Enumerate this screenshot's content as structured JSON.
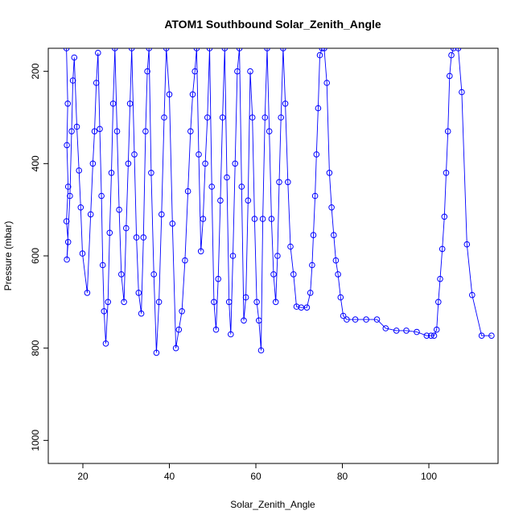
{
  "chart_data": {
    "type": "line",
    "title": "ATOM1 Southbound Solar_Zenith_Angle",
    "xlabel": "Solar_Zenith_Angle",
    "ylabel": "Pressure (mbar)",
    "xlim": [
      12,
      116
    ],
    "ylim": [
      1050,
      150
    ],
    "y_reversed": true,
    "grid": false,
    "marker": "open-circle",
    "color": "#0000ff",
    "xticks": [
      20,
      40,
      60,
      80,
      100
    ],
    "yticks": [
      200,
      400,
      600,
      800,
      1000
    ],
    "series": [
      {
        "values": [
          {
            "x": 16.2,
            "y": 150
          },
          {
            "x": 16.5,
            "y": 270
          },
          {
            "x": 16.3,
            "y": 360
          },
          {
            "x": 16.6,
            "y": 450
          },
          {
            "x": 16.2,
            "y": 525
          },
          {
            "x": 16.6,
            "y": 570
          },
          {
            "x": 16.3,
            "y": 608
          },
          {
            "x": 17.0,
            "y": 470
          },
          {
            "x": 17.4,
            "y": 330
          },
          {
            "x": 17.7,
            "y": 220
          },
          {
            "x": 18.0,
            "y": 170
          },
          {
            "x": 18.6,
            "y": 320
          },
          {
            "x": 19.1,
            "y": 415
          },
          {
            "x": 19.5,
            "y": 495
          },
          {
            "x": 19.9,
            "y": 595
          },
          {
            "x": 21.0,
            "y": 680
          },
          {
            "x": 21.8,
            "y": 510
          },
          {
            "x": 22.3,
            "y": 400
          },
          {
            "x": 22.7,
            "y": 330
          },
          {
            "x": 23.1,
            "y": 225
          },
          {
            "x": 23.5,
            "y": 160
          },
          {
            "x": 23.9,
            "y": 325
          },
          {
            "x": 24.3,
            "y": 470
          },
          {
            "x": 24.6,
            "y": 620
          },
          {
            "x": 24.9,
            "y": 720
          },
          {
            "x": 25.3,
            "y": 790
          },
          {
            "x": 25.8,
            "y": 700
          },
          {
            "x": 26.2,
            "y": 550
          },
          {
            "x": 26.6,
            "y": 420
          },
          {
            "x": 27.0,
            "y": 270
          },
          {
            "x": 27.4,
            "y": 150
          },
          {
            "x": 27.9,
            "y": 330
          },
          {
            "x": 28.4,
            "y": 500
          },
          {
            "x": 28.9,
            "y": 640
          },
          {
            "x": 29.5,
            "y": 700
          },
          {
            "x": 30.0,
            "y": 540
          },
          {
            "x": 30.5,
            "y": 400
          },
          {
            "x": 30.9,
            "y": 270
          },
          {
            "x": 31.3,
            "y": 150
          },
          {
            "x": 31.9,
            "y": 380
          },
          {
            "x": 32.4,
            "y": 560
          },
          {
            "x": 32.9,
            "y": 680
          },
          {
            "x": 33.5,
            "y": 725
          },
          {
            "x": 34.0,
            "y": 560
          },
          {
            "x": 34.5,
            "y": 330
          },
          {
            "x": 34.9,
            "y": 200
          },
          {
            "x": 35.3,
            "y": 150
          },
          {
            "x": 35.8,
            "y": 420
          },
          {
            "x": 36.4,
            "y": 640
          },
          {
            "x": 37.0,
            "y": 810
          },
          {
            "x": 37.6,
            "y": 700
          },
          {
            "x": 38.2,
            "y": 510
          },
          {
            "x": 38.8,
            "y": 300
          },
          {
            "x": 39.3,
            "y": 150
          },
          {
            "x": 40.0,
            "y": 250
          },
          {
            "x": 40.7,
            "y": 530
          },
          {
            "x": 41.5,
            "y": 800
          },
          {
            "x": 42.2,
            "y": 760
          },
          {
            "x": 42.9,
            "y": 720
          },
          {
            "x": 43.6,
            "y": 610
          },
          {
            "x": 44.3,
            "y": 460
          },
          {
            "x": 44.9,
            "y": 330
          },
          {
            "x": 45.4,
            "y": 250
          },
          {
            "x": 45.9,
            "y": 200
          },
          {
            "x": 46.3,
            "y": 150
          },
          {
            "x": 46.8,
            "y": 380
          },
          {
            "x": 47.3,
            "y": 590
          },
          {
            "x": 47.8,
            "y": 520
          },
          {
            "x": 48.3,
            "y": 400
          },
          {
            "x": 48.8,
            "y": 300
          },
          {
            "x": 49.3,
            "y": 150
          },
          {
            "x": 49.8,
            "y": 450
          },
          {
            "x": 50.3,
            "y": 700
          },
          {
            "x": 50.8,
            "y": 760
          },
          {
            "x": 51.3,
            "y": 650
          },
          {
            "x": 51.8,
            "y": 480
          },
          {
            "x": 52.3,
            "y": 300
          },
          {
            "x": 52.8,
            "y": 150
          },
          {
            "x": 53.3,
            "y": 430
          },
          {
            "x": 53.8,
            "y": 700
          },
          {
            "x": 54.2,
            "y": 770
          },
          {
            "x": 54.7,
            "y": 600
          },
          {
            "x": 55.2,
            "y": 400
          },
          {
            "x": 55.7,
            "y": 200
          },
          {
            "x": 56.2,
            "y": 150
          },
          {
            "x": 56.7,
            "y": 450
          },
          {
            "x": 57.2,
            "y": 740
          },
          {
            "x": 57.7,
            "y": 690
          },
          {
            "x": 58.2,
            "y": 480
          },
          {
            "x": 58.7,
            "y": 200
          },
          {
            "x": 59.2,
            "y": 300
          },
          {
            "x": 59.7,
            "y": 520
          },
          {
            "x": 60.2,
            "y": 700
          },
          {
            "x": 60.7,
            "y": 740
          },
          {
            "x": 61.2,
            "y": 805
          },
          {
            "x": 61.6,
            "y": 520
          },
          {
            "x": 62.1,
            "y": 300
          },
          {
            "x": 62.6,
            "y": 150
          },
          {
            "x": 63.1,
            "y": 330
          },
          {
            "x": 63.6,
            "y": 520
          },
          {
            "x": 64.1,
            "y": 640
          },
          {
            "x": 64.6,
            "y": 700
          },
          {
            "x": 65.0,
            "y": 600
          },
          {
            "x": 65.4,
            "y": 440
          },
          {
            "x": 65.8,
            "y": 300
          },
          {
            "x": 66.3,
            "y": 150
          },
          {
            "x": 66.8,
            "y": 270
          },
          {
            "x": 67.4,
            "y": 440
          },
          {
            "x": 68.0,
            "y": 580
          },
          {
            "x": 68.7,
            "y": 640
          },
          {
            "x": 69.4,
            "y": 710
          },
          {
            "x": 70.5,
            "y": 712
          },
          {
            "x": 71.8,
            "y": 712
          },
          {
            "x": 72.6,
            "y": 680
          },
          {
            "x": 73.0,
            "y": 620
          },
          {
            "x": 73.3,
            "y": 555
          },
          {
            "x": 73.7,
            "y": 470
          },
          {
            "x": 74.0,
            "y": 380
          },
          {
            "x": 74.4,
            "y": 280
          },
          {
            "x": 74.8,
            "y": 165
          },
          {
            "x": 75.3,
            "y": 150
          },
          {
            "x": 75.8,
            "y": 150
          },
          {
            "x": 76.4,
            "y": 225
          },
          {
            "x": 77.0,
            "y": 420
          },
          {
            "x": 77.5,
            "y": 495
          },
          {
            "x": 78.0,
            "y": 555
          },
          {
            "x": 78.5,
            "y": 610
          },
          {
            "x": 79.0,
            "y": 640
          },
          {
            "x": 79.6,
            "y": 690
          },
          {
            "x": 80.2,
            "y": 730
          },
          {
            "x": 81.0,
            "y": 738
          },
          {
            "x": 83.0,
            "y": 738
          },
          {
            "x": 85.5,
            "y": 738
          },
          {
            "x": 88.0,
            "y": 738
          },
          {
            "x": 90.0,
            "y": 757
          },
          {
            "x": 92.5,
            "y": 762
          },
          {
            "x": 94.8,
            "y": 762
          },
          {
            "x": 97.2,
            "y": 765
          },
          {
            "x": 99.5,
            "y": 773
          },
          {
            "x": 100.5,
            "y": 773
          },
          {
            "x": 101.2,
            "y": 773
          },
          {
            "x": 101.8,
            "y": 760
          },
          {
            "x": 102.2,
            "y": 700
          },
          {
            "x": 102.6,
            "y": 650
          },
          {
            "x": 103.1,
            "y": 585
          },
          {
            "x": 103.6,
            "y": 515
          },
          {
            "x": 104.0,
            "y": 420
          },
          {
            "x": 104.4,
            "y": 330
          },
          {
            "x": 104.8,
            "y": 210
          },
          {
            "x": 105.2,
            "y": 165
          },
          {
            "x": 105.7,
            "y": 150
          },
          {
            "x": 106.8,
            "y": 150
          },
          {
            "x": 107.6,
            "y": 245
          },
          {
            "x": 108.8,
            "y": 575
          },
          {
            "x": 110.0,
            "y": 685
          },
          {
            "x": 112.2,
            "y": 773
          },
          {
            "x": 114.5,
            "y": 773
          }
        ]
      }
    ]
  }
}
